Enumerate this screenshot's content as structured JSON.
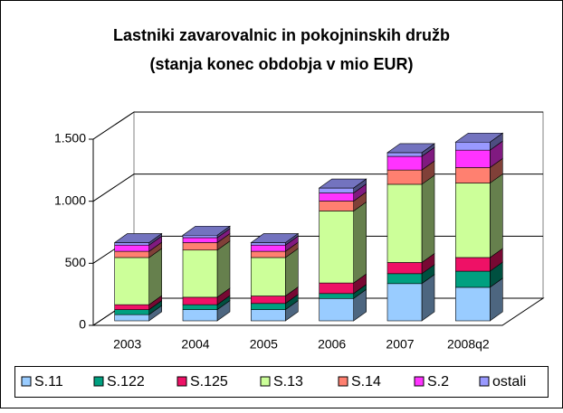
{
  "chart_data": {
    "type": "bar3d_stacked",
    "title": [
      "Lastniki zavarovalnic in pokojninskih družb",
      "(stanja konec obdobja v mio EUR)"
    ],
    "categories": [
      "2003",
      "2004",
      "2005",
      "2006",
      "2007",
      "2008q2"
    ],
    "series": [
      {
        "name": "S.11",
        "color": "#99ccff",
        "values": [
          50,
          90,
          90,
          180,
          300,
          270
        ]
      },
      {
        "name": "S.122",
        "color": "#00a080",
        "values": [
          40,
          40,
          50,
          40,
          80,
          130
        ]
      },
      {
        "name": "S.125",
        "color": "#ee1166",
        "values": [
          40,
          60,
          60,
          85,
          90,
          110
        ]
      },
      {
        "name": "S.13",
        "color": "#ccff99",
        "values": [
          380,
          380,
          310,
          580,
          630,
          600
        ]
      },
      {
        "name": "S.14",
        "color": "#ff8070",
        "values": [
          50,
          60,
          50,
          80,
          115,
          125
        ]
      },
      {
        "name": "S.2",
        "color": "#ff33ff",
        "values": [
          50,
          40,
          50,
          65,
          110,
          140
        ]
      },
      {
        "name": "ostali",
        "color": "#9999ff",
        "values": [
          20,
          20,
          20,
          40,
          30,
          65
        ]
      }
    ],
    "ylim": [
      0,
      1500
    ],
    "yticks": [
      0,
      500,
      {
        "value": 1000,
        "label": "1.000"
      },
      {
        "value": 1500,
        "label": "1.500"
      }
    ],
    "grid": true,
    "legend": "bottom"
  }
}
